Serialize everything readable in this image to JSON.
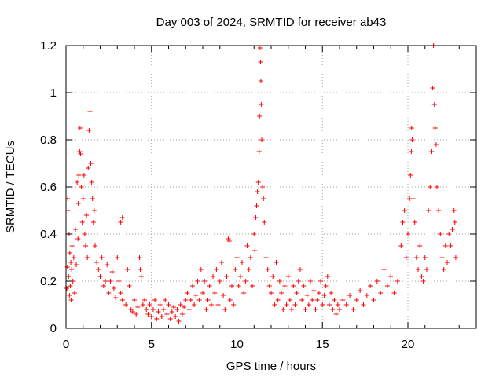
{
  "chart_data": {
    "type": "scatter",
    "title": "Day 003 of 2024, SRMTID for receiver ab43",
    "xlabel": "GPS time / hours",
    "ylabel": "SRMTID / TECUs",
    "xlim": [
      0,
      24
    ],
    "ylim": [
      0,
      1.2
    ],
    "xticks": [
      0,
      5,
      10,
      15,
      20
    ],
    "xtick_labels": [
      "0",
      "5",
      "10",
      "15",
      "20"
    ],
    "yticks": [
      0,
      0.2,
      0.4,
      0.6,
      0.8,
      1.0,
      1.2
    ],
    "ytick_labels": [
      "0",
      "0.2",
      "0.4",
      "0.6",
      "0.8",
      "1",
      "1.2"
    ],
    "grid": true,
    "marker": "+",
    "color": "#ff0000",
    "series": [
      {
        "name": "SRMTID",
        "points": [
          [
            0.05,
            0.17
          ],
          [
            0.08,
            0.26
          ],
          [
            0.1,
            0.55
          ],
          [
            0.12,
            0.5
          ],
          [
            0.15,
            0.22
          ],
          [
            0.18,
            0.4
          ],
          [
            0.2,
            0.14
          ],
          [
            0.22,
            0.32
          ],
          [
            0.25,
            0.18
          ],
          [
            0.28,
            0.28
          ],
          [
            0.3,
            0.12
          ],
          [
            0.33,
            0.25
          ],
          [
            0.35,
            0.35
          ],
          [
            0.4,
            0.2
          ],
          [
            0.45,
            0.3
          ],
          [
            0.5,
            0.15
          ],
          [
            0.55,
            0.42
          ],
          [
            0.6,
            0.27
          ],
          [
            0.65,
            0.62
          ],
          [
            0.7,
            0.38
          ],
          [
            0.72,
            0.53
          ],
          [
            0.75,
            0.65
          ],
          [
            0.8,
            0.75
          ],
          [
            0.82,
            0.85
          ],
          [
            0.85,
            0.74
          ],
          [
            0.9,
            0.6
          ],
          [
            0.95,
            0.45
          ],
          [
            1.0,
            0.55
          ],
          [
            1.05,
            0.65
          ],
          [
            1.1,
            0.4
          ],
          [
            1.15,
            0.35
          ],
          [
            1.2,
            0.48
          ],
          [
            1.25,
            0.3
          ],
          [
            1.3,
            0.68
          ],
          [
            1.35,
            0.84
          ],
          [
            1.4,
            0.92
          ],
          [
            1.45,
            0.7
          ],
          [
            1.5,
            0.62
          ],
          [
            1.55,
            0.55
          ],
          [
            1.6,
            0.45
          ],
          [
            1.65,
            0.5
          ],
          [
            1.7,
            0.35
          ],
          [
            1.8,
            0.28
          ],
          [
            1.9,
            0.25
          ],
          [
            2.0,
            0.22
          ],
          [
            2.1,
            0.3
          ],
          [
            2.2,
            0.18
          ],
          [
            2.3,
            0.2
          ],
          [
            2.4,
            0.27
          ],
          [
            2.5,
            0.15
          ],
          [
            2.6,
            0.2
          ],
          [
            2.7,
            0.24
          ],
          [
            2.8,
            0.17
          ],
          [
            2.9,
            0.13
          ],
          [
            3.0,
            0.3
          ],
          [
            3.1,
            0.2
          ],
          [
            3.2,
            0.15
          ],
          [
            3.3,
            0.12
          ],
          [
            3.2,
            0.45
          ],
          [
            3.3,
            0.47
          ],
          [
            3.5,
            0.1
          ],
          [
            3.6,
            0.25
          ],
          [
            3.7,
            0.18
          ],
          [
            3.8,
            0.08
          ],
          [
            3.9,
            0.07
          ],
          [
            4.0,
            0.12
          ],
          [
            4.1,
            0.06
          ],
          [
            4.2,
            0.09
          ],
          [
            4.3,
            0.3
          ],
          [
            4.35,
            0.25
          ],
          [
            4.4,
            0.22
          ],
          [
            4.5,
            0.1
          ],
          [
            4.6,
            0.12
          ],
          [
            4.7,
            0.08
          ],
          [
            4.8,
            0.06
          ],
          [
            4.9,
            0.1
          ],
          [
            5.0,
            0.05
          ],
          [
            5.1,
            0.08
          ],
          [
            5.2,
            0.12
          ],
          [
            5.3,
            0.04
          ],
          [
            5.4,
            0.07
          ],
          [
            5.5,
            0.1
          ],
          [
            5.6,
            0.05
          ],
          [
            5.7,
            0.08
          ],
          [
            5.8,
            0.12
          ],
          [
            5.9,
            0.06
          ],
          [
            6.0,
            0.1
          ],
          [
            6.1,
            0.04
          ],
          [
            6.2,
            0.07
          ],
          [
            6.3,
            0.09
          ],
          [
            6.4,
            0.05
          ],
          [
            6.5,
            0.08
          ],
          [
            6.6,
            0.03
          ],
          [
            6.7,
            0.1
          ],
          [
            6.8,
            0.06
          ],
          [
            6.9,
            0.09
          ],
          [
            7.0,
            0.12
          ],
          [
            7.1,
            0.15
          ],
          [
            7.2,
            0.08
          ],
          [
            7.3,
            0.12
          ],
          [
            7.4,
            0.18
          ],
          [
            7.5,
            0.1
          ],
          [
            7.6,
            0.14
          ],
          [
            7.7,
            0.2
          ],
          [
            7.8,
            0.12
          ],
          [
            7.9,
            0.25
          ],
          [
            8.0,
            0.15
          ],
          [
            8.1,
            0.2
          ],
          [
            8.2,
            0.08
          ],
          [
            8.3,
            0.12
          ],
          [
            8.4,
            0.18
          ],
          [
            8.5,
            0.1
          ],
          [
            8.6,
            0.22
          ],
          [
            8.7,
            0.15
          ],
          [
            8.8,
            0.25
          ],
          [
            8.9,
            0.1
          ],
          [
            9.0,
            0.2
          ],
          [
            9.1,
            0.28
          ],
          [
            9.2,
            0.14
          ],
          [
            9.3,
            0.08
          ],
          [
            9.4,
            0.22
          ],
          [
            9.5,
            0.38
          ],
          [
            9.55,
            0.37
          ],
          [
            9.6,
            0.12
          ],
          [
            9.7,
            0.18
          ],
          [
            9.8,
            0.1
          ],
          [
            9.9,
            0.25
          ],
          [
            10.0,
            0.3
          ],
          [
            10.1,
            0.18
          ],
          [
            10.2,
            0.22
          ],
          [
            10.3,
            0.28
          ],
          [
            10.4,
            0.15
          ],
          [
            10.5,
            0.2
          ],
          [
            10.6,
            0.35
          ],
          [
            10.7,
            0.25
          ],
          [
            10.8,
            0.3
          ],
          [
            10.9,
            0.18
          ],
          [
            11.0,
            0.4
          ],
          [
            11.05,
            0.33
          ],
          [
            11.1,
            0.47
          ],
          [
            11.15,
            0.52
          ],
          [
            11.2,
            0.58
          ],
          [
            11.25,
            0.62
          ],
          [
            11.3,
            0.75
          ],
          [
            11.32,
            0.9
          ],
          [
            11.35,
            1.19
          ],
          [
            11.38,
            1.13
          ],
          [
            11.4,
            1.05
          ],
          [
            11.42,
            0.95
          ],
          [
            11.45,
            0.8
          ],
          [
            11.5,
            0.6
          ],
          [
            11.55,
            0.55
          ],
          [
            11.6,
            0.45
          ],
          [
            11.7,
            0.3
          ],
          [
            11.8,
            0.25
          ],
          [
            11.9,
            0.18
          ],
          [
            12.0,
            0.15
          ],
          [
            12.1,
            0.22
          ],
          [
            12.2,
            0.1
          ],
          [
            12.3,
            0.28
          ],
          [
            12.4,
            0.12
          ],
          [
            12.5,
            0.2
          ],
          [
            12.6,
            0.15
          ],
          [
            12.7,
            0.08
          ],
          [
            12.8,
            0.18
          ],
          [
            12.9,
            0.1
          ],
          [
            13.0,
            0.22
          ],
          [
            13.1,
            0.12
          ],
          [
            13.2,
            0.08
          ],
          [
            13.3,
            0.18
          ],
          [
            13.4,
            0.1
          ],
          [
            13.5,
            0.15
          ],
          [
            13.6,
            0.2
          ],
          [
            13.7,
            0.25
          ],
          [
            13.8,
            0.12
          ],
          [
            13.9,
            0.18
          ],
          [
            14.0,
            0.08
          ],
          [
            14.1,
            0.14
          ],
          [
            14.2,
            0.1
          ],
          [
            14.3,
            0.2
          ],
          [
            14.4,
            0.12
          ],
          [
            14.5,
            0.16
          ],
          [
            14.6,
            0.08
          ],
          [
            14.7,
            0.12
          ],
          [
            14.8,
            0.15
          ],
          [
            14.9,
            0.2
          ],
          [
            15.0,
            0.1
          ],
          [
            15.1,
            0.14
          ],
          [
            15.2,
            0.18
          ],
          [
            15.3,
            0.22
          ],
          [
            15.4,
            0.1
          ],
          [
            15.5,
            0.15
          ],
          [
            15.6,
            0.08
          ],
          [
            15.7,
            0.12
          ],
          [
            15.8,
            0.06
          ],
          [
            15.9,
            0.1
          ],
          [
            16.0,
            0.08
          ],
          [
            16.2,
            0.12
          ],
          [
            16.4,
            0.1
          ],
          [
            16.6,
            0.14
          ],
          [
            16.8,
            0.08
          ],
          [
            17.0,
            0.12
          ],
          [
            17.2,
            0.16
          ],
          [
            17.4,
            0.1
          ],
          [
            17.6,
            0.14
          ],
          [
            17.8,
            0.18
          ],
          [
            18.0,
            0.12
          ],
          [
            18.2,
            0.2
          ],
          [
            18.4,
            0.15
          ],
          [
            18.6,
            0.25
          ],
          [
            18.8,
            0.18
          ],
          [
            19.0,
            0.22
          ],
          [
            19.2,
            0.15
          ],
          [
            19.4,
            0.2
          ],
          [
            19.6,
            0.35
          ],
          [
            19.7,
            0.45
          ],
          [
            19.8,
            0.5
          ],
          [
            19.9,
            0.3
          ],
          [
            20.0,
            0.4
          ],
          [
            20.1,
            0.55
          ],
          [
            20.15,
            0.65
          ],
          [
            20.2,
            0.75
          ],
          [
            20.22,
            0.85
          ],
          [
            20.25,
            0.8
          ],
          [
            20.3,
            0.55
          ],
          [
            20.4,
            0.45
          ],
          [
            20.5,
            0.3
          ],
          [
            20.6,
            0.25
          ],
          [
            20.7,
            0.35
          ],
          [
            20.8,
            0.22
          ],
          [
            20.9,
            0.2
          ],
          [
            21.0,
            0.3
          ],
          [
            21.1,
            0.25
          ],
          [
            21.2,
            0.5
          ],
          [
            21.3,
            0.6
          ],
          [
            21.4,
            0.75
          ],
          [
            21.45,
            1.02
          ],
          [
            21.5,
            1.2
          ],
          [
            21.55,
            0.95
          ],
          [
            21.6,
            0.85
          ],
          [
            21.65,
            0.78
          ],
          [
            21.7,
            0.6
          ],
          [
            21.8,
            0.5
          ],
          [
            21.9,
            0.4
          ],
          [
            22.0,
            0.3
          ],
          [
            22.1,
            0.25
          ],
          [
            22.2,
            0.35
          ],
          [
            22.3,
            0.28
          ],
          [
            22.4,
            0.4
          ],
          [
            22.5,
            0.35
          ],
          [
            22.6,
            0.42
          ],
          [
            22.7,
            0.5
          ],
          [
            22.75,
            0.45
          ],
          [
            22.8,
            0.3
          ]
        ]
      }
    ]
  }
}
